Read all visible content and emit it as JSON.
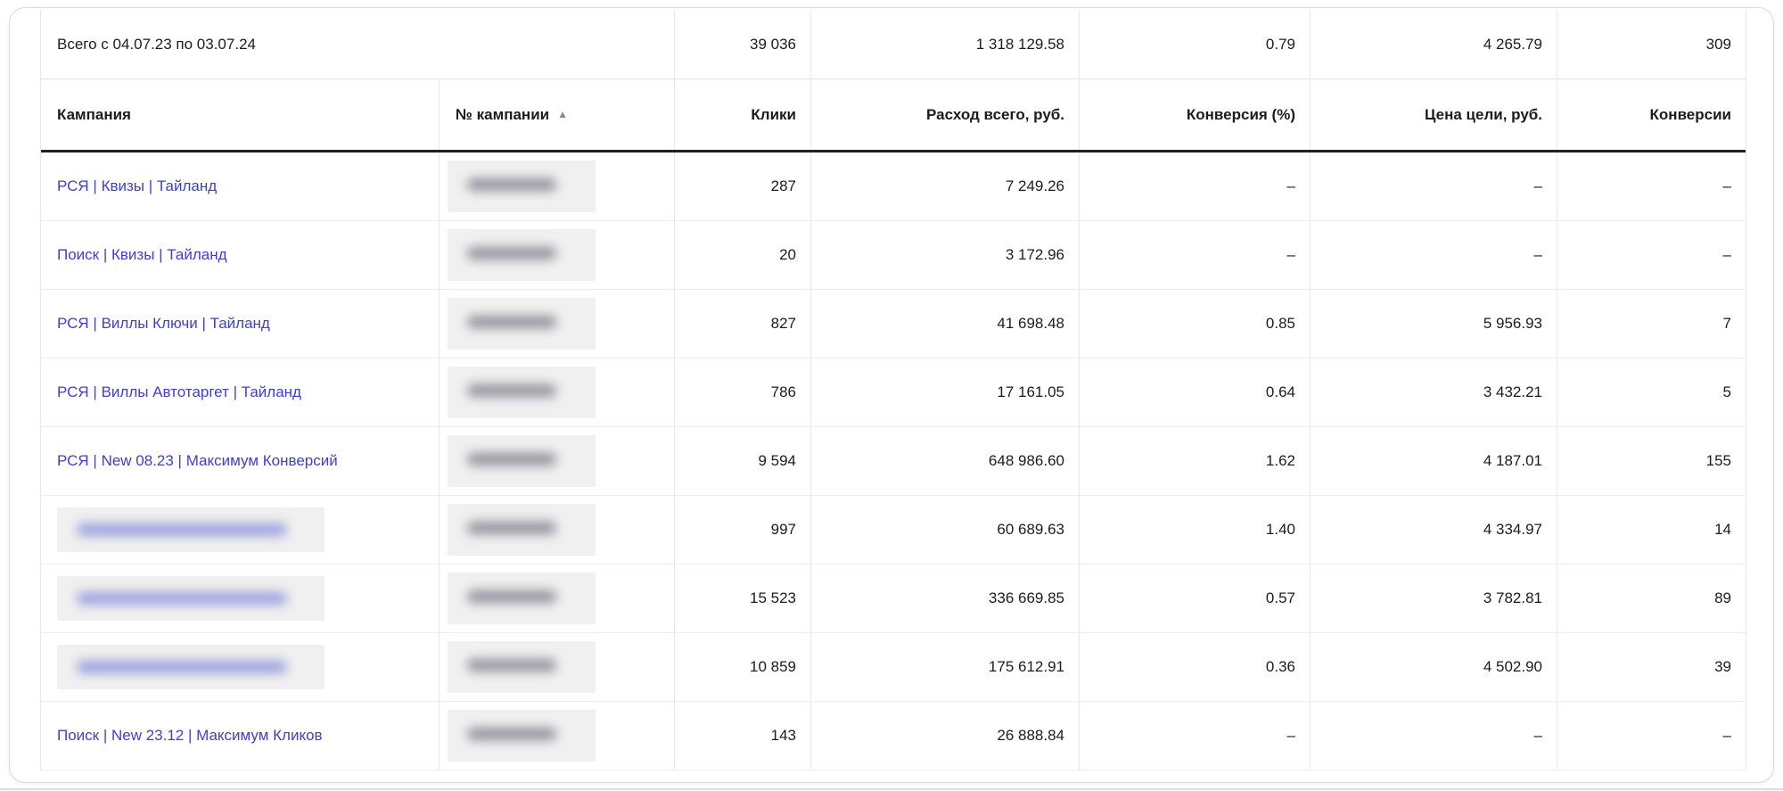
{
  "totals": {
    "label": "Всего с 04.07.23 по 03.07.24",
    "clicks": "39 036",
    "cost": "1 318 129.58",
    "conversion_rate": "0.79",
    "goal_cost": "4 265.79",
    "conversions": "309"
  },
  "sort_indicator": "▲",
  "columns": [
    {
      "key": "campaign",
      "label": "Кампания",
      "align": "left",
      "sorted": false
    },
    {
      "key": "campaign_id",
      "label": "№ кампании",
      "align": "left",
      "sorted": true
    },
    {
      "key": "clicks",
      "label": "Клики",
      "align": "right",
      "sorted": false
    },
    {
      "key": "cost",
      "label": "Расход всего, руб.",
      "align": "right",
      "sorted": false
    },
    {
      "key": "conversion_rate",
      "label": "Конверсия (%)",
      "align": "right",
      "sorted": false
    },
    {
      "key": "goal_cost",
      "label": "Цена цели, руб.",
      "align": "right",
      "sorted": false
    },
    {
      "key": "conversions",
      "label": "Конверсии",
      "align": "right",
      "sorted": false
    }
  ],
  "rows": [
    {
      "campaign": "РСЯ | Квизы | Тайланд",
      "name_redacted": false,
      "id_redacted": true,
      "clicks": "287",
      "cost": "7 249.26",
      "conversion_rate": "–",
      "goal_cost": "–",
      "conversions": "–"
    },
    {
      "campaign": "Поиск | Квизы | Тайланд",
      "name_redacted": false,
      "id_redacted": true,
      "clicks": "20",
      "cost": "3 172.96",
      "conversion_rate": "–",
      "goal_cost": "–",
      "conversions": "–"
    },
    {
      "campaign": "РСЯ | Виллы Ключи | Тайланд",
      "name_redacted": false,
      "id_redacted": true,
      "clicks": "827",
      "cost": "41 698.48",
      "conversion_rate": "0.85",
      "goal_cost": "5 956.93",
      "conversions": "7"
    },
    {
      "campaign": "РСЯ | Виллы Автотаргет | Тайланд",
      "name_redacted": false,
      "id_redacted": true,
      "clicks": "786",
      "cost": "17 161.05",
      "conversion_rate": "0.64",
      "goal_cost": "3 432.21",
      "conversions": "5"
    },
    {
      "campaign": "РСЯ | New 08.23 | Максимум Конверсий",
      "name_redacted": false,
      "id_redacted": true,
      "clicks": "9 594",
      "cost": "648 986.60",
      "conversion_rate": "1.62",
      "goal_cost": "4 187.01",
      "conversions": "155"
    },
    {
      "campaign": "",
      "name_redacted": true,
      "id_redacted": true,
      "clicks": "997",
      "cost": "60 689.63",
      "conversion_rate": "1.40",
      "goal_cost": "4 334.97",
      "conversions": "14"
    },
    {
      "campaign": "",
      "name_redacted": true,
      "id_redacted": true,
      "clicks": "15 523",
      "cost": "336 669.85",
      "conversion_rate": "0.57",
      "goal_cost": "3 782.81",
      "conversions": "89"
    },
    {
      "campaign": "",
      "name_redacted": true,
      "id_redacted": true,
      "clicks": "10 859",
      "cost": "175 612.91",
      "conversion_rate": "0.36",
      "goal_cost": "4 502.90",
      "conversions": "39"
    },
    {
      "campaign": "Поиск | New 23.12 | Максимум Кликов",
      "name_redacted": false,
      "id_redacted": true,
      "clicks": "143",
      "cost": "26 888.84",
      "conversion_rate": "–",
      "goal_cost": "–",
      "conversions": "–"
    }
  ],
  "colors": {
    "link": "#3e3ed4",
    "text": "#1c1c1e",
    "header_rule": "#202020",
    "table_border": "#e8e8e8",
    "card_border": "#d9d9d9",
    "redacted_bg": "#f0f0f0",
    "sort_arrow": "#8a8a8a"
  }
}
